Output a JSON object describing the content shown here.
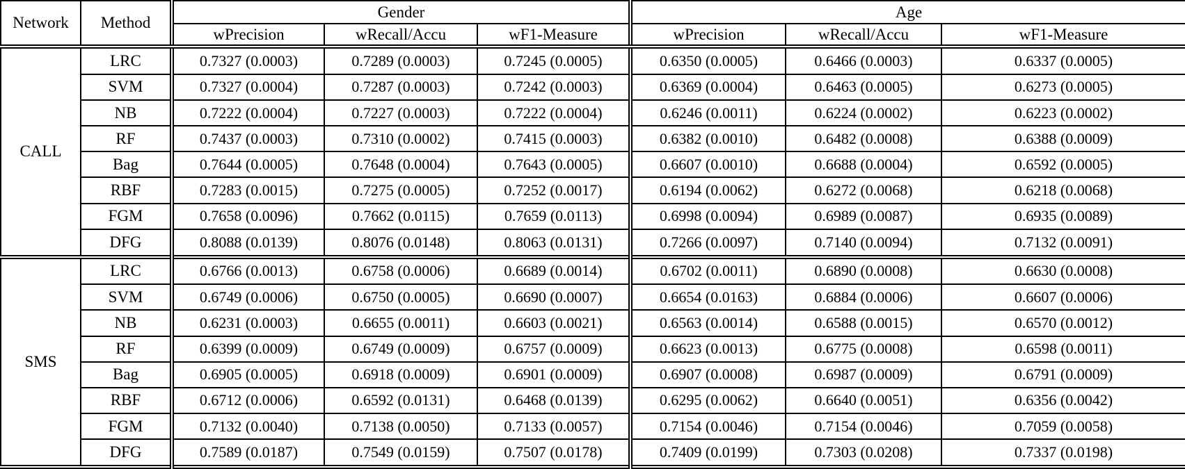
{
  "table": {
    "header": {
      "network": "Network",
      "method": "Method",
      "groups": [
        "Gender",
        "Age"
      ],
      "metrics": [
        "wPrecision",
        "wRecall/Accu",
        "wF1-Measure"
      ]
    },
    "sections": [
      {
        "network": "CALL",
        "rows": [
          {
            "method": "LRC",
            "gender": [
              "0.7327 (0.0003)",
              "0.7289 (0.0003)",
              "0.7245 (0.0005)"
            ],
            "age": [
              "0.6350 (0.0005)",
              "0.6466 (0.0003)",
              "0.6337 (0.0005)"
            ]
          },
          {
            "method": "SVM",
            "gender": [
              "0.7327 (0.0004)",
              "0.7287 (0.0003)",
              "0.7242 (0.0003)"
            ],
            "age": [
              "0.6369 (0.0004)",
              "0.6463 (0.0005)",
              "0.6273 (0.0005)"
            ]
          },
          {
            "method": "NB",
            "gender": [
              "0.7222 (0.0004)",
              "0.7227 (0.0003)",
              "0.7222 (0.0004)"
            ],
            "age": [
              "0.6246 (0.0011)",
              "0.6224 (0.0002)",
              "0.6223 (0.0002)"
            ]
          },
          {
            "method": "RF",
            "gender": [
              "0.7437 (0.0003)",
              "0.7310 (0.0002)",
              "0.7415 (0.0003)"
            ],
            "age": [
              "0.6382 (0.0010)",
              "0.6482 (0.0008)",
              "0.6388 (0.0009)"
            ]
          },
          {
            "method": "Bag",
            "gender": [
              "0.7644 (0.0005)",
              "0.7648 (0.0004)",
              "0.7643 (0.0005)"
            ],
            "age": [
              "0.6607 (0.0010)",
              "0.6688 (0.0004)",
              "0.6592 (0.0005)"
            ]
          },
          {
            "method": "RBF",
            "gender": [
              "0.7283 (0.0015)",
              "0.7275 (0.0005)",
              "0.7252 (0.0017)"
            ],
            "age": [
              "0.6194 (0.0062)",
              "0.6272 (0.0068)",
              "0.6218 (0.0068)"
            ]
          },
          {
            "method": "FGM",
            "gender": [
              "0.7658 (0.0096)",
              "0.7662 (0.0115)",
              "0.7659 (0.0113)"
            ],
            "age": [
              "0.6998 (0.0094)",
              "0.6989 (0.0087)",
              "0.6935 (0.0089)"
            ]
          },
          {
            "method": "DFG",
            "gender": [
              "0.8088 (0.0139)",
              "0.8076 (0.0148)",
              "0.8063 (0.0131)"
            ],
            "age": [
              "0.7266 (0.0097)",
              "0.7140 (0.0094)",
              "0.7132 (0.0091)"
            ]
          }
        ]
      },
      {
        "network": "SMS",
        "rows": [
          {
            "method": "LRC",
            "gender": [
              "0.6766 (0.0013)",
              "0.6758 (0.0006)",
              "0.6689 (0.0014)"
            ],
            "age": [
              "0.6702 (0.0011)",
              "0.6890 (0.0008)",
              "0.6630 (0.0008)"
            ]
          },
          {
            "method": "SVM",
            "gender": [
              "0.6749 (0.0006)",
              "0.6750 (0.0005)",
              "0.6690 (0.0007)"
            ],
            "age": [
              "0.6654 (0.0163)",
              "0.6884 (0.0006)",
              "0.6607 (0.0006)"
            ]
          },
          {
            "method": "NB",
            "gender": [
              "0.6231 (0.0003)",
              "0.6655 (0.0011)",
              "0.6603 (0.0021)"
            ],
            "age": [
              "0.6563 (0.0014)",
              "0.6588 (0.0015)",
              "0.6570 (0.0012)"
            ]
          },
          {
            "method": "RF",
            "gender": [
              "0.6399 (0.0009)",
              "0.6749 (0.0009)",
              "0.6757 (0.0009)"
            ],
            "age": [
              "0.6623 (0.0013)",
              "0.6775 (0.0008)",
              "0.6598 (0.0011)"
            ]
          },
          {
            "method": "Bag",
            "gender": [
              "0.6905 (0.0005)",
              "0.6918 (0.0009)",
              "0.6901 (0.0009)"
            ],
            "age": [
              "0.6907 (0.0008)",
              "0.6987 (0.0009)",
              "0.6791 (0.0009)"
            ]
          },
          {
            "method": "RBF",
            "gender": [
              "0.6712 (0.0006)",
              "0.6592 (0.0131)",
              "0.6468 (0.0139)"
            ],
            "age": [
              "0.6295 (0.0062)",
              "0.6640 (0.0051)",
              "0.6356 (0.0042)"
            ]
          },
          {
            "method": "FGM",
            "gender": [
              "0.7132 (0.0040)",
              "0.7138 (0.0050)",
              "0.7133 (0.0057)"
            ],
            "age": [
              "0.7154 (0.0046)",
              "0.7154 (0.0046)",
              "0.7059 (0.0058)"
            ]
          },
          {
            "method": "DFG",
            "gender": [
              "0.7589 (0.0187)",
              "0.7549 (0.0159)",
              "0.7507 (0.0178)"
            ],
            "age": [
              "0.7409 (0.0199)",
              "0.7303 (0.0208)",
              "0.7337 (0.0198)"
            ]
          }
        ]
      }
    ],
    "colors": {
      "text": "#000000",
      "border": "#000000",
      "background": "#ffffff"
    }
  }
}
